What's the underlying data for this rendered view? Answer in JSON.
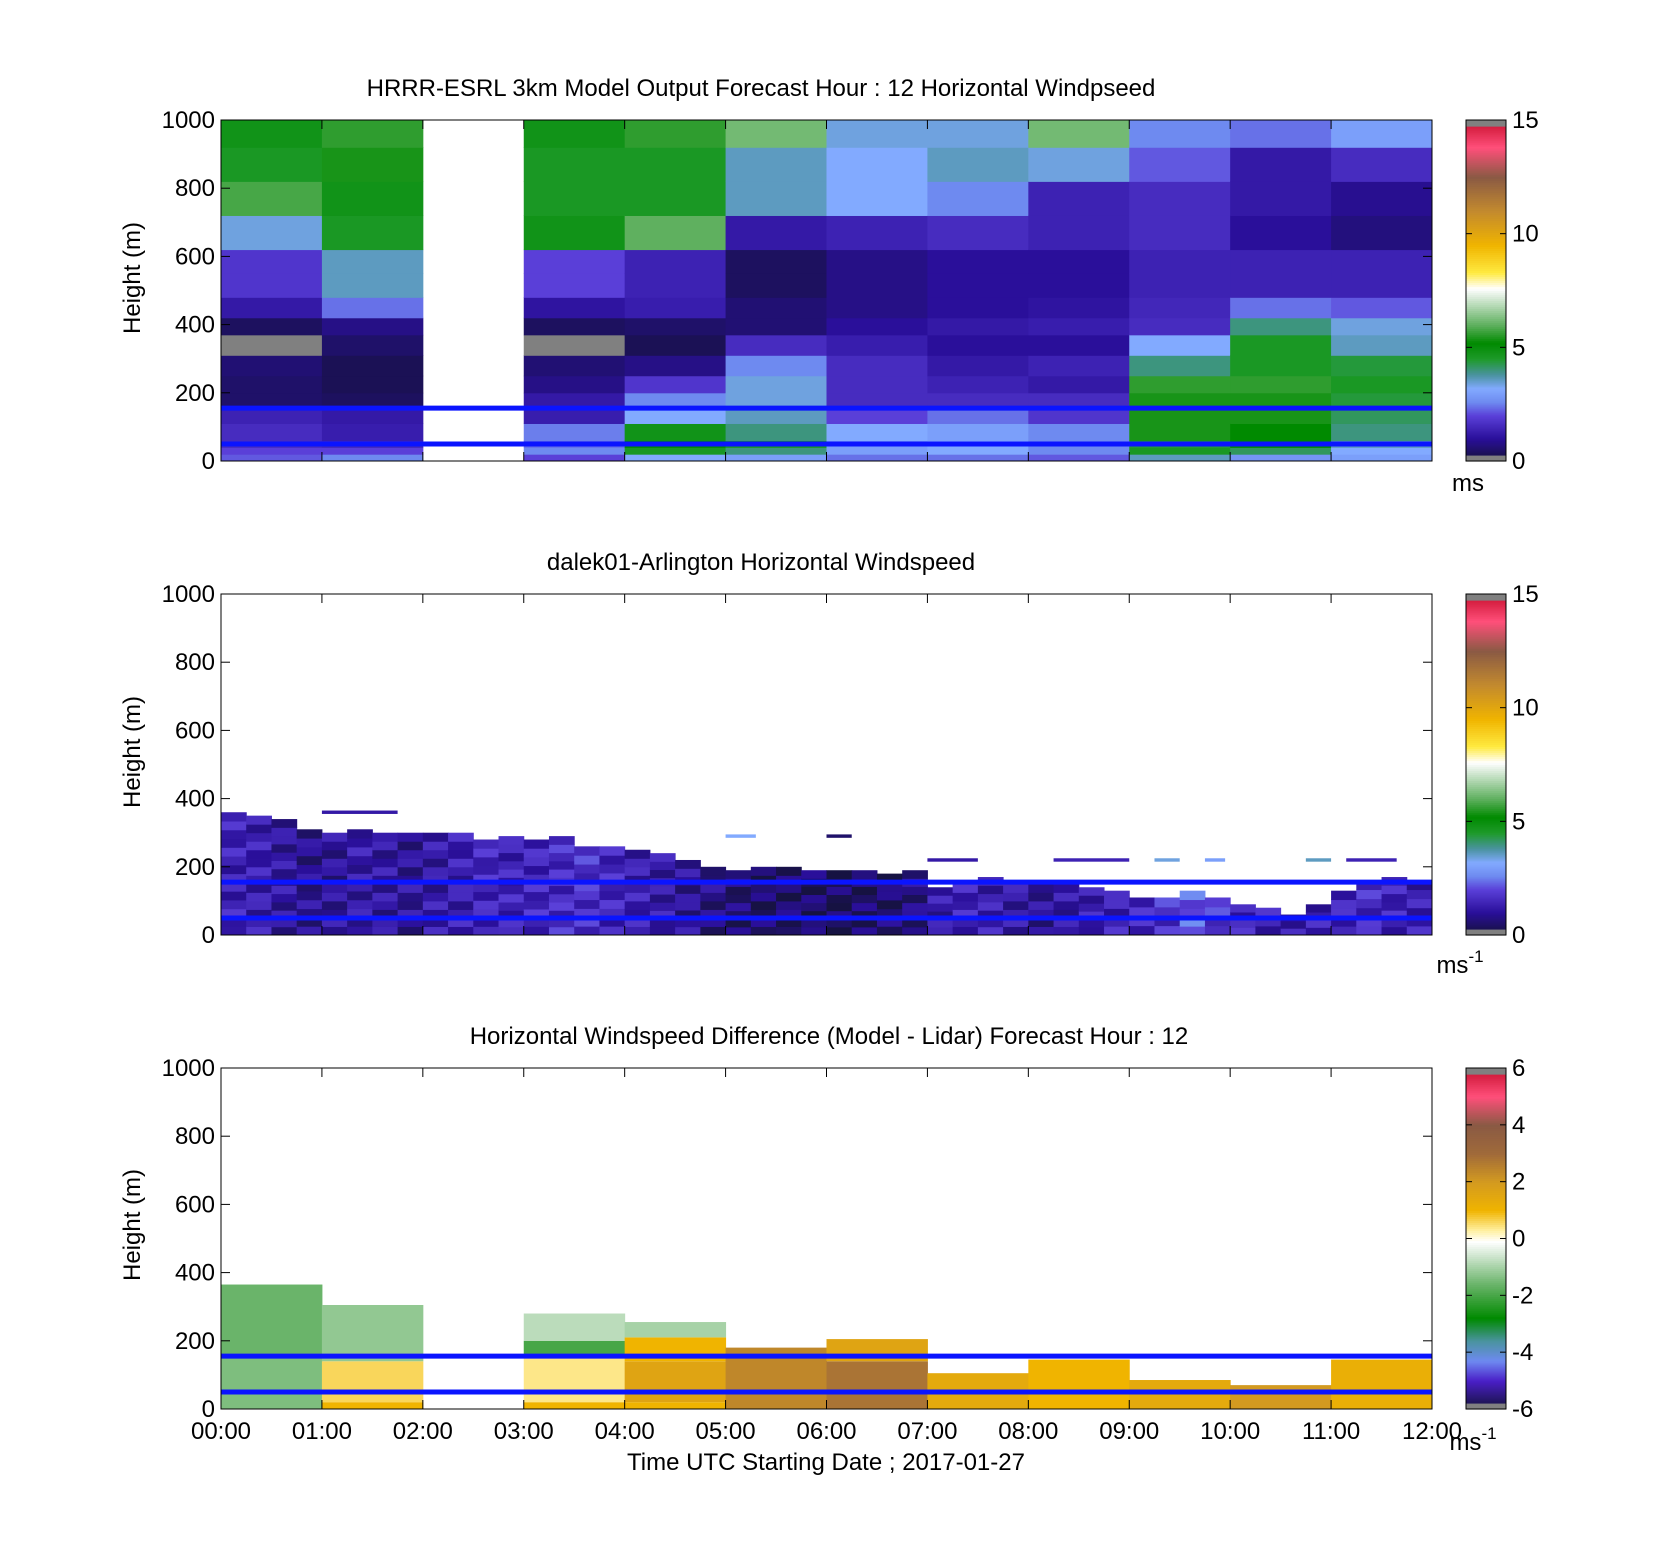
{
  "figure": {
    "xlabel": "Time UTC  Starting Date ; 2017-01-27",
    "time_ticks": [
      "00:00",
      "01:00",
      "02:00",
      "03:00",
      "04:00",
      "05:00",
      "06:00",
      "07:00",
      "08:00",
      "09:00",
      "10:00",
      "11:00",
      "12:00"
    ],
    "reference_heights_m": [
      50,
      155
    ],
    "reference_line_color": "#0a14ff"
  },
  "chart_data": [
    {
      "type": "heatmap",
      "title": "HRRR-ESRL 3km Model Output   Forecast Hour : 12 Horizontal Windpseed",
      "ylabel": "Height (m)",
      "xlabel": "",
      "ylim": [
        0,
        1000
      ],
      "yticks": [
        0,
        200,
        400,
        600,
        800,
        1000
      ],
      "xlim_hours": [
        0,
        12
      ],
      "colorbar": {
        "min": 0,
        "max": 15,
        "ticks": [
          0,
          5,
          10,
          15
        ],
        "unit": "ms",
        "palette": "speed"
      },
      "column_width_hours": 1,
      "row_heights_m": [
        0,
        20,
        40,
        60,
        110,
        150,
        200,
        250,
        310,
        370,
        420,
        480,
        550,
        620,
        720,
        820,
        920,
        1000
      ],
      "columns": [
        {
          "t": 0,
          "v": [
            2.2,
            2.0,
            1.6,
            1.6,
            1.4,
            0.5,
            0.5,
            0.6,
            -1,
            0.4,
            1.2,
            1.8,
            1.8,
            3.4,
            5.8,
            4.6,
            4.8
          ]
        },
        {
          "t": 1,
          "v": [
            2.6,
            2.0,
            1.5,
            1.3,
            1.2,
            0.4,
            0.3,
            0.3,
            0.5,
            0.8,
            2.4,
            3.6,
            3.6,
            4.6,
            4.8,
            5.4,
            5.6
          ]
        },
        {
          "t": 2,
          "v": []
        },
        {
          "t": 3,
          "v": [
            2.0,
            2.6,
            2.4,
            2.5,
            1.3,
            1.2,
            0.8,
            0.6,
            -1,
            0.4,
            1.1,
            2.0,
            2.0,
            4.8,
            4.6,
            4.6,
            4.8
          ]
        },
        {
          "t": 4,
          "v": [
            3.2,
            4.6,
            5.2,
            4.8,
            3.2,
            2.6,
            1.8,
            0.8,
            0.3,
            0.5,
            1.3,
            1.4,
            1.4,
            6.0,
            4.6,
            4.6,
            5.6
          ]
        },
        {
          "t": 5,
          "v": [
            3.0,
            4.0,
            4.6,
            4.0,
            3.6,
            3.4,
            3.4,
            2.6,
            1.6,
            0.6,
            0.6,
            0.4,
            0.4,
            1.2,
            3.6,
            3.6,
            6.2
          ]
        },
        {
          "t": 6,
          "v": [
            2.4,
            3.0,
            3.0,
            3.2,
            2.0,
            1.6,
            1.6,
            1.6,
            1.3,
            1.0,
            0.8,
            0.8,
            0.8,
            1.4,
            3.2,
            3.2,
            3.4
          ]
        },
        {
          "t": 7,
          "v": [
            2.4,
            3.2,
            3.2,
            3.0,
            2.4,
            1.6,
            1.4,
            1.2,
            1.0,
            1.2,
            1.0,
            1.0,
            1.0,
            1.6,
            2.6,
            3.6,
            3.4
          ]
        },
        {
          "t": 8,
          "v": [
            2.2,
            2.6,
            2.6,
            2.6,
            1.8,
            1.6,
            1.2,
            1.4,
            1.0,
            1.3,
            1.1,
            1.0,
            1.0,
            1.4,
            1.4,
            3.4,
            6.2
          ]
        },
        {
          "t": 9,
          "v": [
            3.6,
            4.6,
            4.4,
            5.4,
            5.4,
            5.4,
            5.6,
            4.0,
            3.2,
            1.6,
            1.5,
            1.4,
            1.4,
            1.6,
            1.6,
            2.2,
            2.6
          ]
        },
        {
          "t": 10,
          "v": [
            2.8,
            4.2,
            5.2,
            5.2,
            5.4,
            5.4,
            5.6,
            4.6,
            4.6,
            4.0,
            2.4,
            1.4,
            1.4,
            1.0,
            1.2,
            1.2,
            2.4
          ]
        },
        {
          "t": 11,
          "v": [
            3.0,
            3.2,
            3.6,
            4.0,
            4.2,
            4.4,
            4.6,
            4.4,
            3.6,
            3.4,
            2.2,
            1.4,
            1.4,
            0.7,
            0.9,
            1.6,
            3.0
          ]
        }
      ]
    },
    {
      "type": "heatmap",
      "title": "dalek01-Arlington  Horizontal Windspeed",
      "ylabel": "Height (m)",
      "xlabel": "",
      "ylim": [
        0,
        1000
      ],
      "yticks": [
        0,
        200,
        400,
        600,
        800,
        1000
      ],
      "xlim_hours": [
        0,
        12
      ],
      "colorbar": {
        "min": 0,
        "max": 15,
        "ticks": [
          0,
          5,
          10,
          15
        ],
        "unit": "ms",
        "unit_exponent": "-1",
        "palette": "speed"
      },
      "column_width_hours": 0.25,
      "columns": [
        {
          "t": 0.0,
          "top": 360,
          "v": 1.4
        },
        {
          "t": 0.25,
          "top": 350,
          "v": 1.3
        },
        {
          "t": 0.5,
          "top": 340,
          "v": 1.1
        },
        {
          "t": 0.75,
          "top": 310,
          "v": 0.9
        },
        {
          "t": 1.0,
          "top": 300,
          "v": 1.0
        },
        {
          "t": 1.25,
          "top": 310,
          "v": 1.2
        },
        {
          "t": 1.5,
          "top": 300,
          "v": 1.1
        },
        {
          "t": 1.75,
          "top": 300,
          "v": 1.0
        },
        {
          "t": 2.0,
          "top": 300,
          "v": 1.2
        },
        {
          "t": 2.25,
          "top": 300,
          "v": 1.3
        },
        {
          "t": 2.5,
          "top": 280,
          "v": 1.5
        },
        {
          "t": 2.75,
          "top": 290,
          "v": 1.4
        },
        {
          "t": 3.0,
          "top": 280,
          "v": 1.5
        },
        {
          "t": 3.25,
          "top": 290,
          "v": 1.6
        },
        {
          "t": 3.5,
          "top": 260,
          "v": 1.7
        },
        {
          "t": 3.75,
          "top": 260,
          "v": 1.5
        },
        {
          "t": 4.0,
          "top": 250,
          "v": 1.3
        },
        {
          "t": 4.25,
          "top": 240,
          "v": 1.2
        },
        {
          "t": 4.5,
          "top": 220,
          "v": 1.0
        },
        {
          "t": 4.75,
          "top": 200,
          "v": 0.8
        },
        {
          "t": 5.0,
          "top": 190,
          "v": 0.6
        },
        {
          "t": 5.25,
          "top": 200,
          "v": 0.5
        },
        {
          "t": 5.5,
          "top": 200,
          "v": 0.6
        },
        {
          "t": 5.75,
          "top": 190,
          "v": 0.5
        },
        {
          "t": 6.0,
          "top": 190,
          "v": 0.4
        },
        {
          "t": 6.25,
          "top": 190,
          "v": 0.5
        },
        {
          "t": 6.5,
          "top": 180,
          "v": 0.6
        },
        {
          "t": 6.75,
          "top": 190,
          "v": 0.8
        },
        {
          "t": 7.0,
          "top": 140,
          "v": 1.2
        },
        {
          "t": 7.25,
          "top": 150,
          "v": 1.4
        },
        {
          "t": 7.5,
          "top": 170,
          "v": 1.3
        },
        {
          "t": 7.75,
          "top": 150,
          "v": 1.2
        },
        {
          "t": 8.0,
          "top": 150,
          "v": 1.0
        },
        {
          "t": 8.25,
          "top": 150,
          "v": 1.1
        },
        {
          "t": 8.5,
          "top": 140,
          "v": 1.3
        },
        {
          "t": 8.75,
          "top": 130,
          "v": 1.4
        },
        {
          "t": 9.0,
          "top": 110,
          "v": 1.6
        },
        {
          "t": 9.25,
          "top": 110,
          "v": 1.7
        },
        {
          "t": 9.5,
          "top": 130,
          "v": 2.2
        },
        {
          "t": 9.75,
          "top": 110,
          "v": 1.8
        },
        {
          "t": 10.0,
          "top": 90,
          "v": 1.5
        },
        {
          "t": 10.25,
          "top": 80,
          "v": 1.4
        },
        {
          "t": 10.5,
          "top": 60,
          "v": 1.2
        },
        {
          "t": 10.75,
          "top": 90,
          "v": 1.3
        },
        {
          "t": 11.0,
          "top": 130,
          "v": 1.5
        },
        {
          "t": 11.25,
          "top": 160,
          "v": 1.6
        },
        {
          "t": 11.5,
          "top": 170,
          "v": 1.4
        },
        {
          "t": 11.75,
          "top": 160,
          "v": 1.3
        }
      ],
      "isolated_segments": [
        {
          "t": 1.0,
          "width": 0.75,
          "h": 360,
          "v": 1.2
        },
        {
          "t": 5.0,
          "width": 0.3,
          "h": 290,
          "v": 3.2
        },
        {
          "t": 6.0,
          "width": 0.25,
          "h": 290,
          "v": 0.5
        },
        {
          "t": 7.0,
          "width": 0.5,
          "h": 220,
          "v": 1.2
        },
        {
          "t": 8.25,
          "width": 0.75,
          "h": 220,
          "v": 1.4
        },
        {
          "t": 9.25,
          "width": 0.25,
          "h": 220,
          "v": 3.4
        },
        {
          "t": 9.75,
          "width": 0.2,
          "h": 220,
          "v": 3.0
        },
        {
          "t": 10.75,
          "width": 0.25,
          "h": 220,
          "v": 3.6
        },
        {
          "t": 11.15,
          "width": 0.5,
          "h": 220,
          "v": 1.4
        }
      ]
    },
    {
      "type": "heatmap",
      "title": "Horizontal Windspeed Difference (Model - Lidar) Forecast Hour : 12",
      "ylabel": "Height (m)",
      "xlabel": "Time UTC  Starting Date ; 2017-01-27",
      "ylim": [
        0,
        1000
      ],
      "yticks": [
        0,
        200,
        400,
        600,
        800,
        1000
      ],
      "xlim_hours": [
        0,
        12
      ],
      "colorbar": {
        "min": -6,
        "max": 6,
        "ticks": [
          -6,
          -4,
          -2,
          0,
          2,
          4,
          6
        ],
        "unit": "ms",
        "unit_exponent": "-1",
        "palette": "diff"
      },
      "column_width_hours": 1,
      "columns": [
        {
          "t": 0,
          "segments": [
            {
              "from": 0,
              "to": 150,
              "v": -1.4
            },
            {
              "from": 150,
              "to": 365,
              "v": -1.6
            }
          ]
        },
        {
          "t": 1,
          "segments": [
            {
              "from": 0,
              "to": 20,
              "v": 1.0
            },
            {
              "from": 20,
              "to": 140,
              "v": 0.6
            },
            {
              "from": 140,
              "to": 305,
              "v": -1.2
            }
          ]
        },
        {
          "t": 2,
          "segments": []
        },
        {
          "t": 3,
          "segments": [
            {
              "from": 0,
              "to": 20,
              "v": 1.0
            },
            {
              "from": 20,
              "to": 150,
              "v": 0.4
            },
            {
              "from": 150,
              "to": 200,
              "v": -2.0
            },
            {
              "from": 200,
              "to": 280,
              "v": -0.8
            }
          ]
        },
        {
          "t": 4,
          "segments": [
            {
              "from": 0,
              "to": 20,
              "v": 1.0
            },
            {
              "from": 20,
              "to": 140,
              "v": 1.6
            },
            {
              "from": 140,
              "to": 210,
              "v": 1.0
            },
            {
              "from": 210,
              "to": 255,
              "v": -1.0
            }
          ]
        },
        {
          "t": 5,
          "segments": [
            {
              "from": 0,
              "to": 180,
              "v": 2.4
            }
          ]
        },
        {
          "t": 6,
          "segments": [
            {
              "from": 0,
              "to": 140,
              "v": 2.8
            },
            {
              "from": 140,
              "to": 205,
              "v": 1.6
            }
          ]
        },
        {
          "t": 7,
          "segments": [
            {
              "from": 0,
              "to": 105,
              "v": 1.4
            }
          ]
        },
        {
          "t": 8,
          "segments": [
            {
              "from": 0,
              "to": 145,
              "v": 1.0
            }
          ]
        },
        {
          "t": 9,
          "segments": [
            {
              "from": 0,
              "to": 85,
              "v": 1.4
            }
          ]
        },
        {
          "t": 10,
          "segments": [
            {
              "from": 0,
              "to": 70,
              "v": 2.0
            }
          ]
        },
        {
          "t": 11,
          "segments": [
            {
              "from": 0,
              "to": 145,
              "v": 1.2
            }
          ]
        }
      ]
    }
  ]
}
